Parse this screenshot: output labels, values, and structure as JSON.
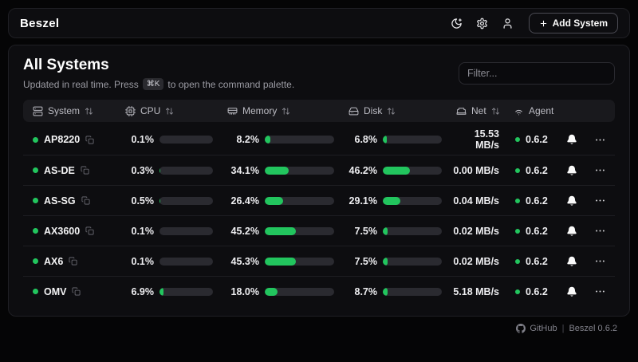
{
  "header": {
    "logo": "Beszel",
    "add_system_label": "Add System"
  },
  "main": {
    "title": "All Systems",
    "subtitle_prefix": "Updated in real time. Press",
    "kbd": "⌘K",
    "subtitle_suffix": "to open the command palette.",
    "filter_placeholder": "Filter..."
  },
  "table": {
    "columns": [
      {
        "label": "System",
        "sortable": true
      },
      {
        "label": "CPU",
        "sortable": true
      },
      {
        "label": "Memory",
        "sortable": true
      },
      {
        "label": "Disk",
        "sortable": true
      },
      {
        "label": "Net",
        "sortable": true
      },
      {
        "label": "Agent",
        "sortable": false
      }
    ],
    "rows": [
      {
        "name": "AP8220",
        "status": "up",
        "cpu": "0.1%",
        "memory": "8.2%",
        "disk": "6.8%",
        "net": "15.53 MB/s",
        "agent": "0.6.2"
      },
      {
        "name": "AS-DE",
        "status": "up",
        "cpu": "0.3%",
        "memory": "34.1%",
        "disk": "46.2%",
        "net": "0.00 MB/s",
        "agent": "0.6.2"
      },
      {
        "name": "AS-SG",
        "status": "up",
        "cpu": "0.5%",
        "memory": "26.4%",
        "disk": "29.1%",
        "net": "0.04 MB/s",
        "agent": "0.6.2"
      },
      {
        "name": "AX3600",
        "status": "up",
        "cpu": "0.1%",
        "memory": "45.2%",
        "disk": "7.5%",
        "net": "0.02 MB/s",
        "agent": "0.6.2"
      },
      {
        "name": "AX6",
        "status": "up",
        "cpu": "0.1%",
        "memory": "45.3%",
        "disk": "7.5%",
        "net": "0.02 MB/s",
        "agent": "0.6.2"
      },
      {
        "name": "OMV",
        "status": "up",
        "cpu": "6.9%",
        "memory": "18.0%",
        "disk": "8.7%",
        "net": "5.18 MB/s",
        "agent": "0.6.2"
      }
    ]
  },
  "footer": {
    "github_label": "GitHub",
    "separator": "|",
    "version_label": "Beszel 0.6.2"
  },
  "colors": {
    "accent_green": "#22c55e",
    "bar_track": "#2a2a30"
  }
}
